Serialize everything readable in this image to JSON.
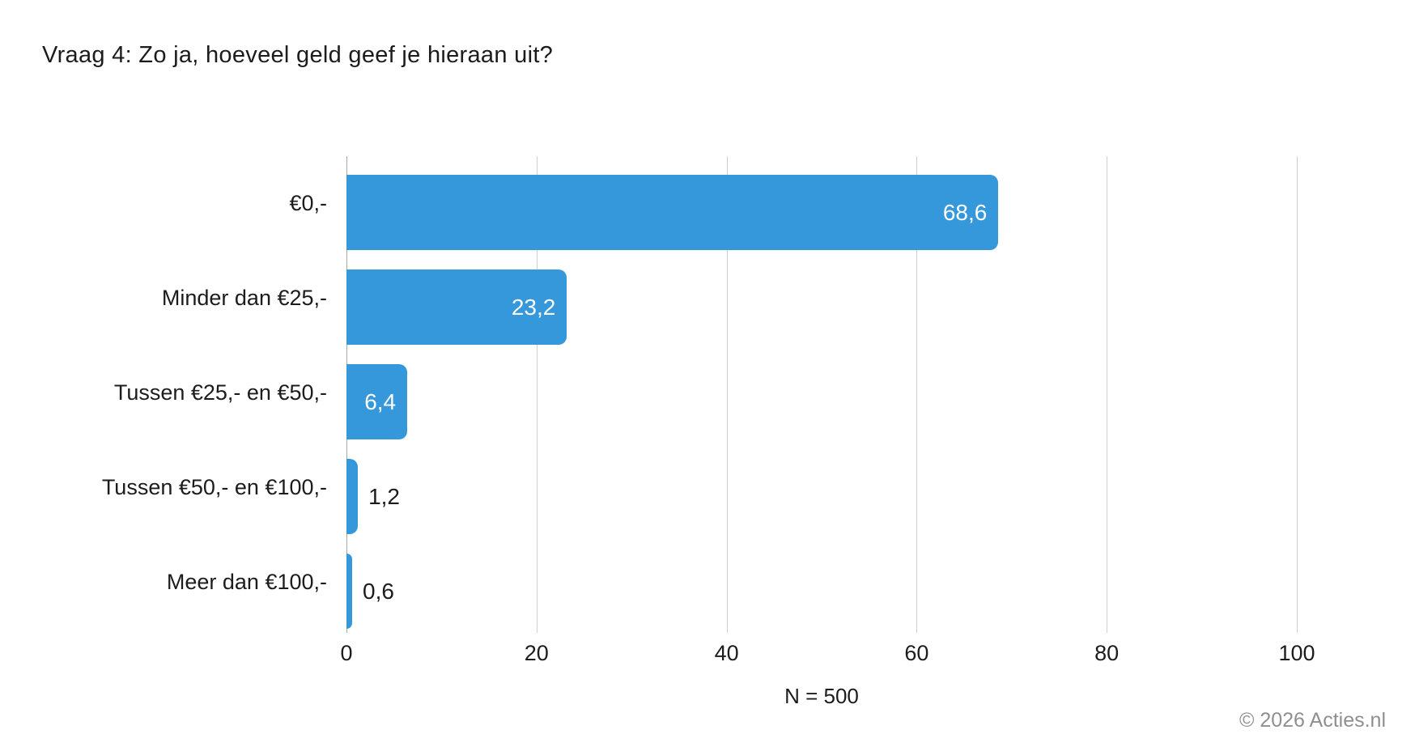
{
  "title": "Vraag 4: Zo ja, hoeveel geld geef je hieraan uit?",
  "footer": {
    "n_label": "N = 500",
    "copyright": "© 2026 Acties.nl"
  },
  "colors": {
    "bar": "#3598db",
    "grid_line": "#cfcfcf",
    "zero_line": "#a8a8a8",
    "value_inside_text": "#ffffff",
    "value_outside_text": "#1c1c1c",
    "axis_text": "#1c1c1c",
    "copyright_text": "#8f8f8f"
  },
  "chart_data": {
    "type": "bar",
    "orientation": "horizontal",
    "title": "Vraag 4: Zo ja, hoeveel geld geef je hieraan uit?",
    "categories": [
      "€0,-",
      "Minder dan €25,-",
      "Tussen €25,- en €50,-",
      "Tussen €50,- en €100,-",
      "Meer dan €100,-"
    ],
    "values": [
      68.6,
      23.2,
      6.4,
      1.2,
      0.6
    ],
    "value_labels": [
      "68,6",
      "23,2",
      "6,4",
      "1,2",
      "0,6"
    ],
    "xlim": [
      0,
      100
    ],
    "x_ticks": [
      0,
      20,
      40,
      60,
      80,
      100
    ],
    "grid": true,
    "legend": false,
    "xlabel": "N = 500",
    "ylabel": ""
  }
}
